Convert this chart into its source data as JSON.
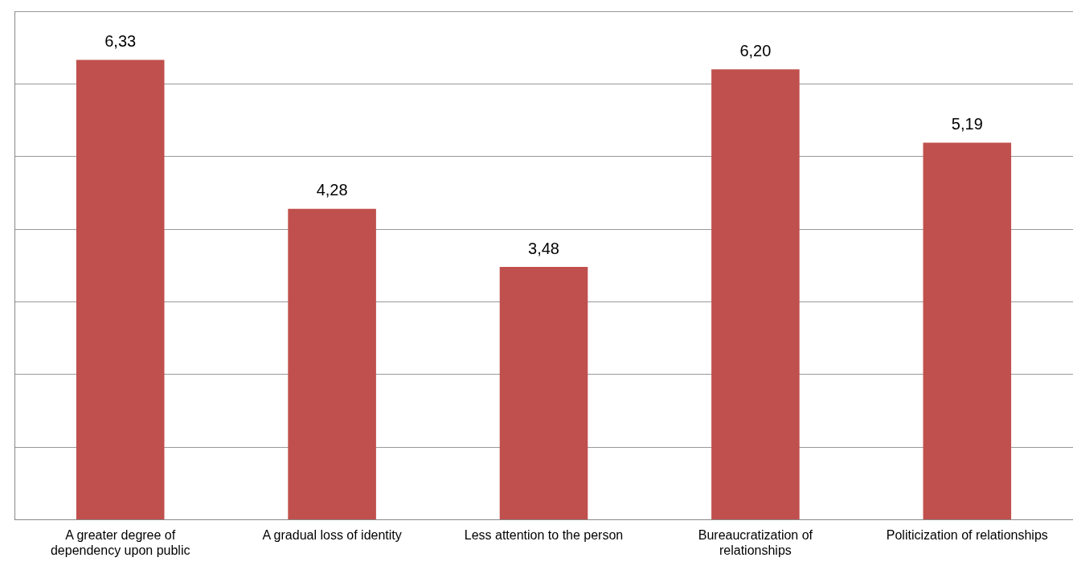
{
  "chart_data": {
    "type": "bar",
    "categories": [
      "A greater degree of dependency upon public",
      "A gradual loss of identity",
      "Less attention to the person",
      "Bureaucratization of relationships",
      "Politicization of relationships"
    ],
    "values": [
      6.33,
      4.28,
      3.48,
      6.2,
      5.19
    ],
    "value_labels": [
      "6,33",
      "4,28",
      "3,48",
      "6,20",
      "5,19"
    ],
    "color": "#c0504d",
    "ylim": [
      0,
      7
    ],
    "yticks": [
      {
        "value": 0,
        "label": null
      },
      {
        "value": 1,
        "label": null
      },
      {
        "value": 2,
        "label": null
      },
      {
        "value": 3,
        "label": null
      },
      {
        "value": 4,
        "label": null
      },
      {
        "value": 5,
        "label": null
      },
      {
        "value": 6,
        "label": null
      },
      {
        "value": 7,
        "label": null
      }
    ],
    "tick_labels": "x",
    "grid": "y"
  }
}
